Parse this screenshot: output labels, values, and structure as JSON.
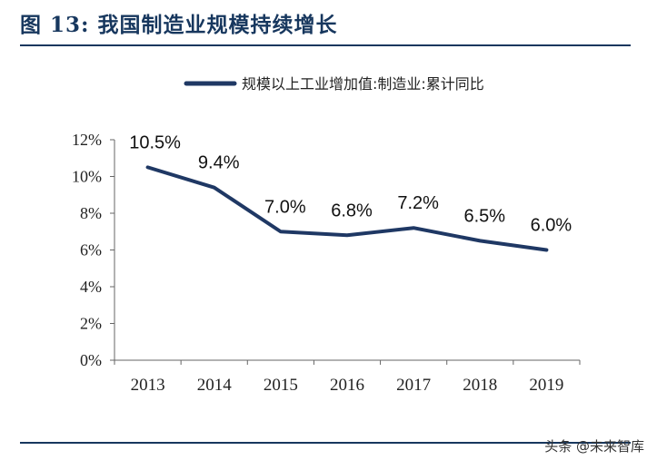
{
  "header": {
    "title": "图 13:  我国制造业规模持续增长"
  },
  "watermark": "头条 @未来智库",
  "chart_data": {
    "type": "line",
    "title": "",
    "xlabel": "",
    "ylabel": "",
    "categories": [
      "2013",
      "2014",
      "2015",
      "2016",
      "2017",
      "2018",
      "2019"
    ],
    "series": [
      {
        "name": "规模以上工业增加值:制造业:累计同比",
        "values": [
          10.5,
          9.4,
          7.0,
          6.8,
          7.2,
          6.5,
          6.0
        ],
        "labels": [
          "10.5%",
          "9.4%",
          "7.0%",
          "6.8%",
          "7.2%",
          "6.5%",
          "6.0%"
        ],
        "color": "#1f3864"
      }
    ],
    "ylim": [
      0,
      12
    ],
    "yticks": [
      "0%",
      "2%",
      "4%",
      "6%",
      "8%",
      "10%",
      "12%"
    ],
    "grid": false,
    "legend_position": "top"
  }
}
